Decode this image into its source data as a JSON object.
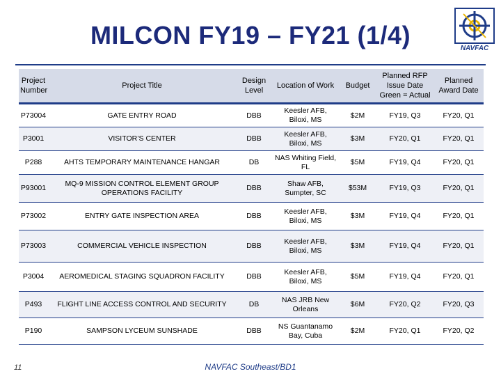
{
  "slide": {
    "title": "MILCON FY19 – FY21  (1/4)",
    "page_number": "11",
    "footer": "NAVFAC Southeast/BD1",
    "logo_text": "NAVFAC",
    "accent_color": "#1f3c88",
    "title_color": "#1c2a7a"
  },
  "table": {
    "headers": [
      "Project Number",
      "Project Title",
      "Design Level",
      "Location of Work",
      "Budget",
      "Planned RFP Issue Date Green = Actual",
      "Planned Award Date"
    ],
    "rows": [
      [
        "P73004",
        "GATE ENTRY ROAD",
        "DBB",
        "Keesler AFB, Biloxi, MS",
        "$2M",
        "FY19, Q3",
        "FY20, Q1"
      ],
      [
        "P3001",
        "VISITOR’S CENTER",
        "DBB",
        "Keesler AFB, Biloxi, MS",
        "$3M",
        "FY20, Q1",
        "FY20, Q1"
      ],
      [
        "P288",
        "AHTS TEMPORARY MAINTENANCE HANGAR",
        "DB",
        "NAS Whiting Field, FL",
        "$5M",
        "FY19, Q4",
        "FY20, Q1"
      ],
      [
        "P93001",
        "MQ-9 MISSION CONTROL ELEMENT GROUP OPERATIONS FACILITY",
        "DBB",
        "Shaw AFB, Sumpter, SC",
        "$53M",
        "FY19, Q3",
        "FY20, Q1"
      ],
      [
        "P73002",
        "ENTRY GATE INSPECTION AREA",
        "DBB",
        "Keesler AFB, Biloxi, MS",
        "$3M",
        "FY19, Q4",
        "FY20, Q1"
      ],
      [
        "P73003",
        "COMMERCIAL VEHICLE INSPECTION",
        "DBB",
        "Keesler AFB, Biloxi, MS",
        "$3M",
        "FY19, Q4",
        "FY20, Q1"
      ],
      [
        "P3004",
        "AEROMEDICAL STAGING SQUADRON FACILITY",
        "DBB",
        "Keesler AFB, Biloxi, MS",
        "$5M",
        "FY19, Q4",
        "FY20, Q1"
      ],
      [
        "P493",
        "FLIGHT LINE ACCESS CONTROL AND SECURITY",
        "DB",
        "NAS JRB New Orleans",
        "$6M",
        "FY20, Q2",
        "FY20, Q3"
      ],
      [
        "P190",
        "SAMPSON LYCEUM SUNSHADE",
        "DBB",
        "NS Guantanamo Bay, Cuba",
        "$2M",
        "FY20, Q1",
        "FY20, Q2"
      ]
    ]
  }
}
